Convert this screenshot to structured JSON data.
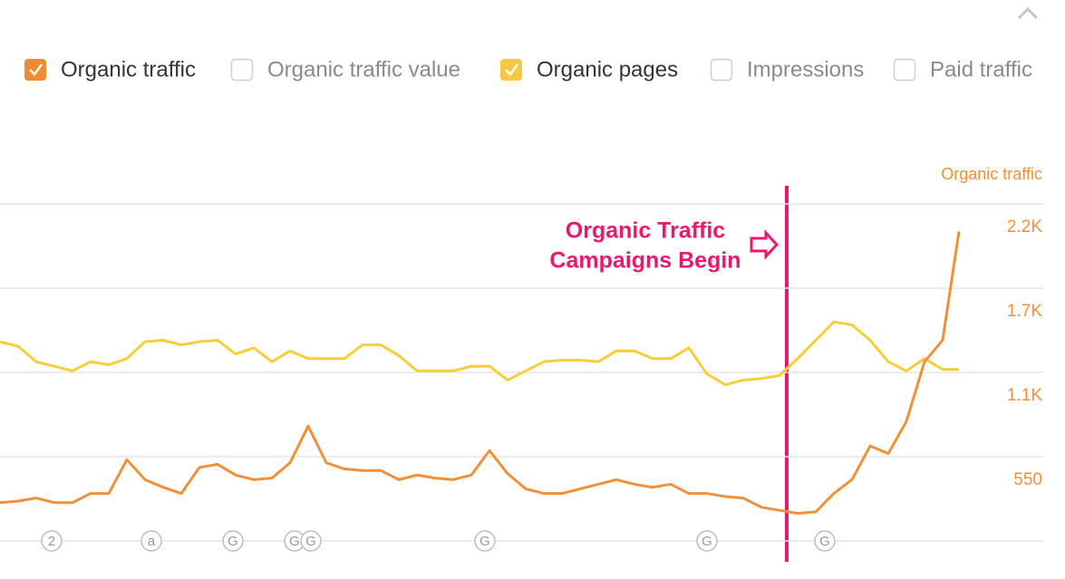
{
  "legend_options": [
    {
      "label": "Organic traffic",
      "checked": true,
      "color": "#f08a33"
    },
    {
      "label": "Organic traffic value",
      "checked": false
    },
    {
      "label": "Organic pages",
      "checked": true,
      "color": "#f5c842"
    },
    {
      "label": "Impressions",
      "checked": false
    },
    {
      "label": "Paid traffic",
      "checked": false
    }
  ],
  "chart_data": {
    "type": "line",
    "y_axis_label": "Organic traffic",
    "ylim": [
      0,
      2200
    ],
    "yticks": [
      {
        "value": 550,
        "label": "550"
      },
      {
        "value": 1100,
        "label": "1.1K"
      },
      {
        "value": 1650,
        "label": "1.7K"
      },
      {
        "value": 2200,
        "label": "2.2K"
      }
    ],
    "grid": true,
    "series": [
      {
        "name": "Organic traffic",
        "color": "#f0913a",
        "values": [
          250,
          260,
          280,
          250,
          250,
          310,
          310,
          530,
          400,
          350,
          310,
          480,
          500,
          430,
          400,
          410,
          510,
          750,
          510,
          470,
          460,
          460,
          400,
          430,
          410,
          400,
          430,
          590,
          440,
          340,
          310,
          310,
          340,
          370,
          400,
          370,
          350,
          370,
          310,
          310,
          290,
          280,
          220,
          200,
          180,
          190,
          310,
          400,
          620,
          570,
          780,
          1170,
          1310,
          2020
        ]
      },
      {
        "name": "Organic pages",
        "color": "#f5cf3a",
        "values": [
          1300,
          1270,
          1170,
          1140,
          1110,
          1170,
          1150,
          1190,
          1300,
          1310,
          1280,
          1300,
          1310,
          1220,
          1260,
          1170,
          1240,
          1190,
          1190,
          1190,
          1280,
          1280,
          1210,
          1110,
          1110,
          1110,
          1140,
          1140,
          1050,
          1110,
          1170,
          1180,
          1180,
          1170,
          1240,
          1240,
          1190,
          1190,
          1260,
          1090,
          1020,
          1050,
          1060,
          1080,
          1190,
          1310,
          1430,
          1410,
          1310,
          1170,
          1110,
          1190,
          1120,
          1120
        ]
      }
    ],
    "annotation_lines": [
      "Organic Traffic",
      "Campaigns Begin"
    ],
    "event_markers": [
      "2",
      "a",
      "G",
      "G",
      "G",
      "G",
      "G",
      "G"
    ]
  }
}
